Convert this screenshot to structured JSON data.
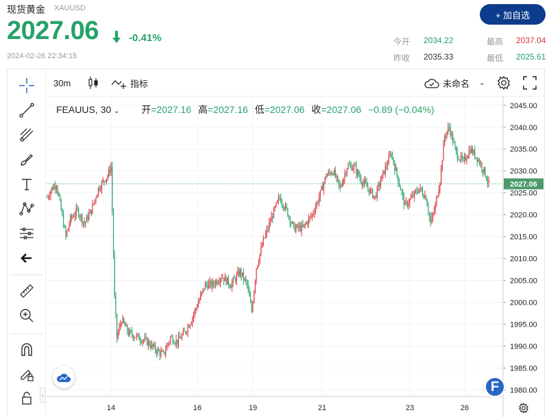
{
  "header": {
    "name": "现货黄金",
    "symbol": "XAUUSD",
    "price": "2027.06",
    "change_pct": "-0.41%",
    "timestamp": "2024-02-26 22:34:15",
    "add_button": "+ 加自选",
    "stats": {
      "open_label": "今开",
      "open": "2034.22",
      "high_label": "最高",
      "high": "2037.04",
      "prev_label": "昨收",
      "prev": "2035.33",
      "low_label": "最低",
      "low": "2025.61"
    },
    "colors": {
      "down": "#26a269",
      "up": "#d9363e",
      "button": "#0d3c8c"
    }
  },
  "toolbar": {
    "interval": "30m",
    "indicators_label": "指标",
    "layout_name": "未命名"
  },
  "legend": {
    "symbol": "FEAUUS, 30",
    "open_label": "开",
    "open": "=2027.16",
    "high_label": "高",
    "high": "=2027.16",
    "low_label": "低",
    "low": "=2027.06",
    "close_label": "收",
    "close": "=2027.06",
    "change": "−0.89 (−0.04%)"
  },
  "logo_letter": "F",
  "chart_data": {
    "type": "candlestick",
    "x_ticks": [
      "14",
      "16",
      "19",
      "21",
      "23",
      "26"
    ],
    "y_ticks": [
      "2045.00",
      "2040.00",
      "2035.00",
      "2030.00",
      "2025.00",
      "2020.00",
      "2015.00",
      "2010.00",
      "2005.00",
      "2000.00",
      "1995.00",
      "1990.00",
      "1985.00",
      "1980.00"
    ],
    "ylim": [
      1978.5,
      2047
    ],
    "last_price": 2027.06,
    "last_price_label": "2027.06",
    "grid": true,
    "path": [
      {
        "i": 0,
        "v": 2024
      },
      {
        "i": 4,
        "v": 2026
      },
      {
        "i": 8,
        "v": 2027
      },
      {
        "i": 12,
        "v": 2021
      },
      {
        "i": 16,
        "v": 2015
      },
      {
        "i": 20,
        "v": 2019
      },
      {
        "i": 26,
        "v": 2021
      },
      {
        "i": 32,
        "v": 2018
      },
      {
        "i": 38,
        "v": 2021
      },
      {
        "i": 44,
        "v": 2026
      },
      {
        "i": 52,
        "v": 2029
      },
      {
        "i": 55,
        "v": 2031
      },
      {
        "i": 58,
        "v": 2001
      },
      {
        "i": 60,
        "v": 1992
      },
      {
        "i": 64,
        "v": 1996
      },
      {
        "i": 70,
        "v": 1993
      },
      {
        "i": 78,
        "v": 1992
      },
      {
        "i": 86,
        "v": 1991
      },
      {
        "i": 94,
        "v": 1989
      },
      {
        "i": 100,
        "v": 1988
      },
      {
        "i": 106,
        "v": 1992
      },
      {
        "i": 112,
        "v": 1991
      },
      {
        "i": 118,
        "v": 1993
      },
      {
        "i": 124,
        "v": 1996
      },
      {
        "i": 130,
        "v": 2000
      },
      {
        "i": 136,
        "v": 2004
      },
      {
        "i": 142,
        "v": 2004
      },
      {
        "i": 150,
        "v": 2006
      },
      {
        "i": 158,
        "v": 2004
      },
      {
        "i": 166,
        "v": 2007
      },
      {
        "i": 172,
        "v": 2004
      },
      {
        "i": 176,
        "v": 1998
      },
      {
        "i": 180,
        "v": 2008
      },
      {
        "i": 186,
        "v": 2014
      },
      {
        "i": 194,
        "v": 2020
      },
      {
        "i": 200,
        "v": 2024
      },
      {
        "i": 206,
        "v": 2021
      },
      {
        "i": 212,
        "v": 2017
      },
      {
        "i": 220,
        "v": 2017
      },
      {
        "i": 228,
        "v": 2020
      },
      {
        "i": 234,
        "v": 2024
      },
      {
        "i": 240,
        "v": 2029
      },
      {
        "i": 246,
        "v": 2030
      },
      {
        "i": 252,
        "v": 2026
      },
      {
        "i": 258,
        "v": 2031
      },
      {
        "i": 264,
        "v": 2031
      },
      {
        "i": 270,
        "v": 2028
      },
      {
        "i": 276,
        "v": 2026
      },
      {
        "i": 282,
        "v": 2024
      },
      {
        "i": 290,
        "v": 2030
      },
      {
        "i": 296,
        "v": 2034
      },
      {
        "i": 302,
        "v": 2028
      },
      {
        "i": 308,
        "v": 2022
      },
      {
        "i": 314,
        "v": 2024
      },
      {
        "i": 320,
        "v": 2026
      },
      {
        "i": 326,
        "v": 2024
      },
      {
        "i": 330,
        "v": 2018
      },
      {
        "i": 334,
        "v": 2022
      },
      {
        "i": 338,
        "v": 2028
      },
      {
        "i": 342,
        "v": 2038
      },
      {
        "i": 346,
        "v": 2040
      },
      {
        "i": 352,
        "v": 2034
      },
      {
        "i": 358,
        "v": 2032
      },
      {
        "i": 364,
        "v": 2035
      },
      {
        "i": 370,
        "v": 2033
      },
      {
        "i": 376,
        "v": 2030
      },
      {
        "i": 380,
        "v": 2027
      }
    ]
  }
}
